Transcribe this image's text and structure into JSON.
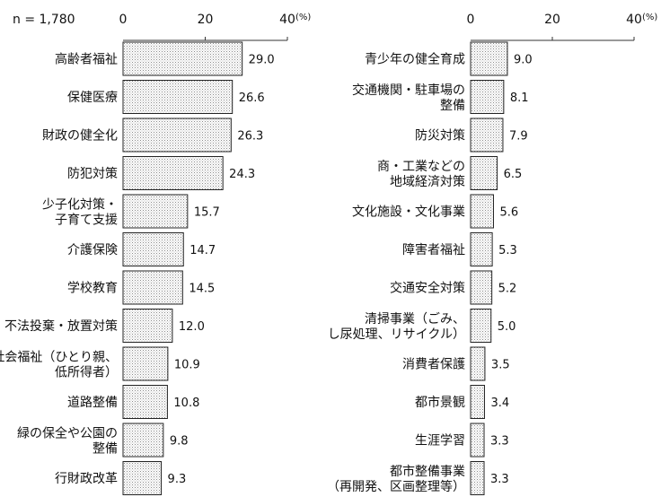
{
  "chart_data": [
    {
      "type": "bar",
      "orientation": "horizontal",
      "n_label": "n = 1,780",
      "unit": "(%)",
      "xlim": [
        0,
        40
      ],
      "ticks": [
        "0",
        "20",
        "40"
      ],
      "categories": [
        [
          "高齢者福祉"
        ],
        [
          "保健医療"
        ],
        [
          "財政の健全化"
        ],
        [
          "防犯対策"
        ],
        [
          "少子化対策・",
          "子育て支援"
        ],
        [
          "介護保険"
        ],
        [
          "学校教育"
        ],
        [
          "不法投棄・放置対策"
        ],
        [
          "社会福祉（ひとり親、",
          "低所得者）"
        ],
        [
          "道路整備"
        ],
        [
          "緑の保全や公園の",
          "整備"
        ],
        [
          "行財政改革"
        ]
      ],
      "values": [
        29.0,
        26.6,
        26.3,
        24.3,
        15.7,
        14.7,
        14.5,
        12.0,
        10.9,
        10.8,
        9.8,
        9.3
      ],
      "value_labels": [
        "29.0",
        "26.6",
        "26.3",
        "24.3",
        "15.7",
        "14.7",
        "14.5",
        "12.0",
        "10.9",
        "10.8",
        "9.8",
        "9.3"
      ]
    },
    {
      "type": "bar",
      "orientation": "horizontal",
      "unit": "(%)",
      "xlim": [
        0,
        40
      ],
      "ticks": [
        "0",
        "20",
        "40"
      ],
      "categories": [
        [
          "青少年の健全育成"
        ],
        [
          "交通機関・駐車場の",
          "整備"
        ],
        [
          "防災対策"
        ],
        [
          "商・工業などの",
          "地域経済対策"
        ],
        [
          "文化施設・文化事業"
        ],
        [
          "障害者福祉"
        ],
        [
          "交通安全対策"
        ],
        [
          "清掃事業（ごみ、",
          "し尿処理、リサイクル）"
        ],
        [
          "消費者保護"
        ],
        [
          "都市景観"
        ],
        [
          "生涯学習"
        ],
        [
          "都市整備事業",
          "（再開発、区画整理等）"
        ]
      ],
      "values": [
        9.0,
        8.1,
        7.9,
        6.5,
        5.6,
        5.3,
        5.2,
        5.0,
        3.5,
        3.4,
        3.3,
        3.3
      ],
      "value_labels": [
        "9.0",
        "8.1",
        "7.9",
        "6.5",
        "5.6",
        "5.3",
        "5.2",
        "5.0",
        "3.5",
        "3.4",
        "3.3",
        "3.3"
      ]
    }
  ]
}
